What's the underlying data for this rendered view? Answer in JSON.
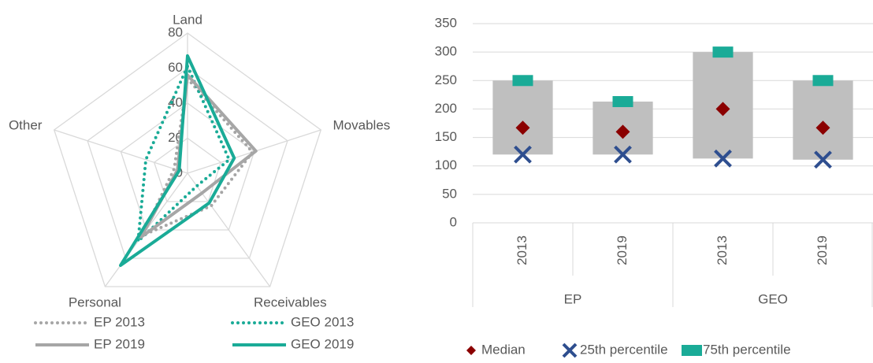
{
  "chart_data": [
    {
      "type": "radar",
      "categories": [
        "Land",
        "Movables",
        "Receivables",
        "Personal",
        "Other"
      ],
      "rlim": [
        0,
        80
      ],
      "rticks": [
        0,
        20,
        40,
        60,
        80
      ],
      "grid": true,
      "legend": "bottom",
      "series": [
        {
          "name": "EP 2013",
          "color": "#a6a6a6",
          "dash": "dotted",
          "values": [
            54,
            39,
            23,
            44,
            8
          ]
        },
        {
          "name": "GEO 2013",
          "color": "#1aab97",
          "dash": "dotted",
          "values": [
            61,
            25,
            9,
            48,
            25
          ]
        },
        {
          "name": "EP 2019",
          "color": "#a6a6a6",
          "dash": "solid",
          "values": [
            56,
            41,
            14,
            45,
            6
          ]
        },
        {
          "name": "GEO 2019",
          "color": "#1aab97",
          "dash": "solid",
          "values": [
            67,
            28,
            21,
            65,
            5
          ]
        }
      ]
    },
    {
      "type": "range",
      "categories": [
        "2013",
        "2019",
        "2013",
        "2019"
      ],
      "groups": [
        {
          "name": "EP",
          "span": 2
        },
        {
          "name": "GEO",
          "span": 2
        }
      ],
      "ylim": [
        0,
        350
      ],
      "yticks": [
        0,
        50,
        100,
        150,
        200,
        250,
        300,
        350
      ],
      "legend": "bottom",
      "bar_color": "#bfbfbf",
      "series": [
        {
          "name": "Median",
          "color": "#8b0000",
          "marker": "diamond",
          "values": [
            167,
            160,
            200,
            167
          ]
        },
        {
          "name": "25th percentile",
          "color": "#2e4e8f",
          "marker": "x",
          "values": [
            120,
            120,
            113,
            111
          ]
        },
        {
          "name": "75th percentile",
          "color": "#1aab97",
          "marker": "square",
          "values": [
            250,
            213,
            300,
            250
          ]
        }
      ]
    }
  ]
}
